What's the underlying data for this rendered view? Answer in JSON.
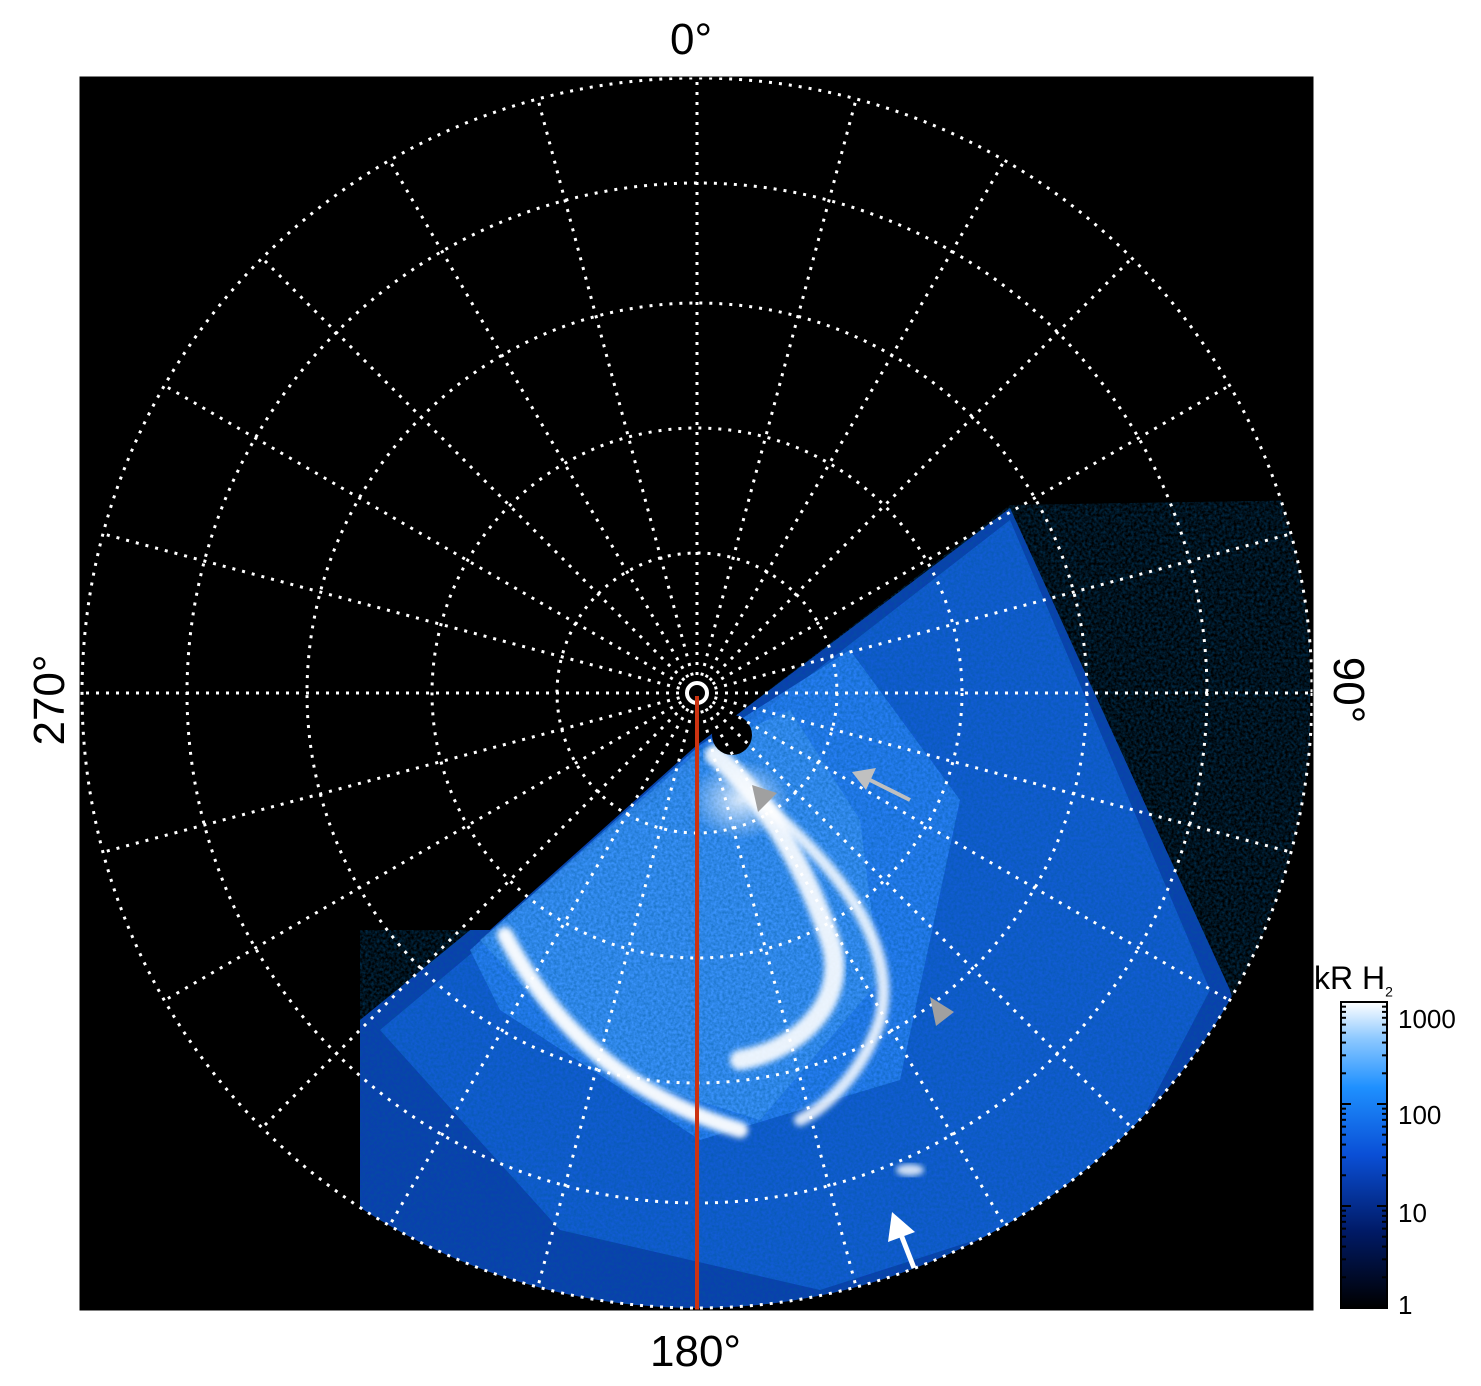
{
  "labels": {
    "top": "0°",
    "right": "90°",
    "bottom": "180°",
    "left": "270°"
  },
  "colorbar": {
    "title_main": "kR H",
    "title_sub": "2",
    "ticks": [
      "1000",
      "100",
      "10",
      "1"
    ],
    "scale": "log",
    "range": [
      1,
      1000
    ]
  },
  "colors": {
    "background": "#000000",
    "grid": "#ffffff",
    "meridian": "#cc3311",
    "aurora_dim": "#0a2a8a",
    "aurora_mid": "#1e7bff",
    "aurora_bright": "#ffffff",
    "arrow_gray": "#a0a0a0",
    "arrow_white": "#ffffff"
  },
  "icons": {
    "arrows": [
      "gray-arrowhead-icon",
      "gray-arrow-icon",
      "gray-arrowhead-icon",
      "white-arrow-icon"
    ]
  }
}
